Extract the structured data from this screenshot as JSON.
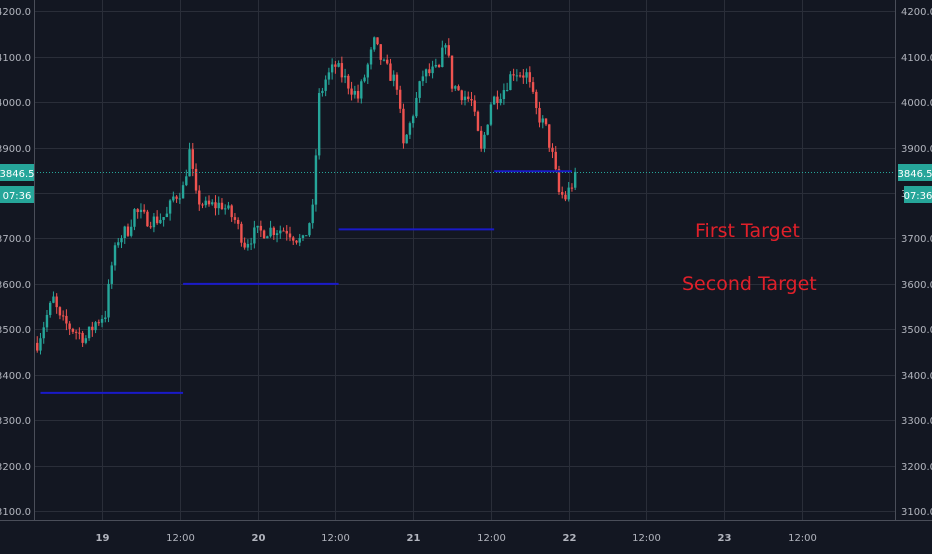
{
  "chart_data": {
    "type": "candlestick",
    "title": "",
    "xlabel": "",
    "ylabel": "",
    "ylim": [
      3080,
      4225
    ],
    "y_ticks": [
      "3100.0",
      "3200.0",
      "3300.0",
      "3400.0",
      "3500.0",
      "3600.0",
      "3700.0",
      "3800.0",
      "3900.0",
      "4000.0",
      "4100.0",
      "4200.0"
    ],
    "x_ticks": [
      {
        "label": "19",
        "t": 0
      },
      {
        "label": "12:00",
        "t": 12
      },
      {
        "label": "20",
        "t": 24
      },
      {
        "label": "12:00",
        "t": 36
      },
      {
        "label": "21",
        "t": 48
      },
      {
        "label": "12:00",
        "t": 60
      },
      {
        "label": "22",
        "t": 72
      },
      {
        "label": "12:00",
        "t": 84
      },
      {
        "label": "23",
        "t": 96
      },
      {
        "label": "12:00",
        "t": 108
      }
    ],
    "x_unit": "hours from 19 00:00",
    "x_range": [
      -10.5,
      122.5
    ],
    "price_path": [
      [
        -10,
        3470
      ],
      [
        -8.5,
        3530
      ],
      [
        -7.5,
        3565
      ],
      [
        -6.5,
        3520
      ],
      [
        -5,
        3505
      ],
      [
        -2.5,
        3480
      ],
      [
        -1,
        3515
      ],
      [
        0.5,
        3535
      ],
      [
        1.5,
        3640
      ],
      [
        2.5,
        3700
      ],
      [
        4,
        3720
      ],
      [
        5,
        3760
      ],
      [
        6.5,
        3745
      ],
      [
        8,
        3740
      ],
      [
        10,
        3750
      ],
      [
        11,
        3790
      ],
      [
        12.5,
        3810
      ],
      [
        13.5,
        3890
      ],
      [
        14.5,
        3790
      ],
      [
        16,
        3770
      ],
      [
        18.5,
        3775
      ],
      [
        20.5,
        3740
      ],
      [
        22,
        3690
      ],
      [
        23.5,
        3710
      ],
      [
        26,
        3720
      ],
      [
        28.5,
        3720
      ],
      [
        31,
        3690
      ],
      [
        32.5,
        3760
      ],
      [
        33.5,
        4010
      ],
      [
        34.5,
        4050
      ],
      [
        36,
        4080
      ],
      [
        37.5,
        4050
      ],
      [
        39.5,
        4010
      ],
      [
        41,
        4080
      ],
      [
        42,
        4130
      ],
      [
        43.5,
        4080
      ],
      [
        45.5,
        4040
      ],
      [
        46.5,
        3900
      ],
      [
        47.5,
        3950
      ],
      [
        49.5,
        4060
      ],
      [
        52,
        4070
      ],
      [
        53,
        4140
      ],
      [
        54,
        4040
      ],
      [
        57,
        4000
      ],
      [
        58.5,
        3890
      ],
      [
        60,
        4000
      ],
      [
        62,
        4030
      ],
      [
        63.5,
        4070
      ],
      [
        65.5,
        4060
      ],
      [
        67,
        3980
      ],
      [
        68.5,
        3940
      ],
      [
        69.5,
        3880
      ],
      [
        70.5,
        3800
      ],
      [
        71.5,
        3790
      ],
      [
        72.5,
        3820
      ],
      [
        73,
        3830
      ]
    ],
    "target_lines": [
      {
        "price": 3360,
        "t0": -9.5,
        "t1": 12.5
      },
      {
        "price": 3600,
        "t0": 12.5,
        "t1": 36.5
      },
      {
        "price": 3720,
        "t0": 36.5,
        "t1": 60.5
      },
      {
        "price": 3848,
        "t0": 60.5,
        "t1": 72.5
      }
    ],
    "current_price": 3846.5,
    "current_price_label": "3846.5",
    "countdown_label": "07:36",
    "annotations": [
      {
        "text": "First Target",
        "color": "#E0202A"
      },
      {
        "text": "Second Target",
        "color": "#E0202A"
      }
    ],
    "up_color": "#26A69A",
    "down_color": "#EF5350",
    "target_color": "#1A1AC8"
  }
}
